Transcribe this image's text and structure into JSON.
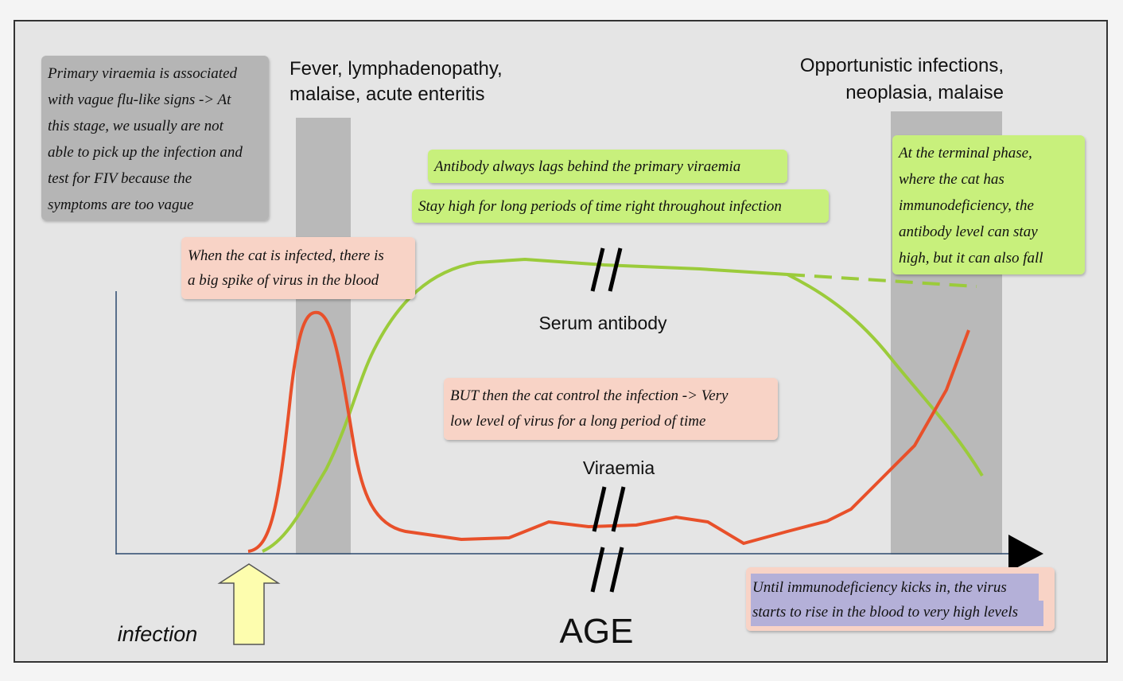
{
  "header": {
    "fever": [
      "Fever, lymphadenopathy,",
      "malaise, acute enteritis"
    ],
    "opportunistic": [
      "Opportunistic infections,",
      "neoplasia, malaise"
    ]
  },
  "curves": {
    "antibody": "Serum antibody",
    "viraemia": "Viraemia"
  },
  "axis": {
    "x_label": "AGE",
    "infection": "infection"
  },
  "notes": {
    "primary": [
      "Primary viraemia is associated",
      "with vague flu-like signs -> At",
      "this stage, we usually are not",
      "able to pick up the infection and",
      "test for FIV because the",
      "symptoms are too vague"
    ],
    "infected": [
      "When the cat is infected, there is",
      "a big spike of virus in the blood"
    ],
    "lags": [
      "Antibody always lags behind the primary viraemia"
    ],
    "stay_high": [
      "Stay high for long periods of time right throughout infection"
    ],
    "terminal": [
      "At the terminal phase,",
      "where the cat has",
      "immunodeficiency, the",
      "antibody level can stay",
      "high, but it can also fall"
    ],
    "control": [
      "BUT then the cat control the infection -> Very",
      "low level of virus for a long period of time"
    ],
    "rise": [
      "Until immunodeficiency kicks in, the virus",
      "starts to rise in the blood to very high levels"
    ]
  }
}
